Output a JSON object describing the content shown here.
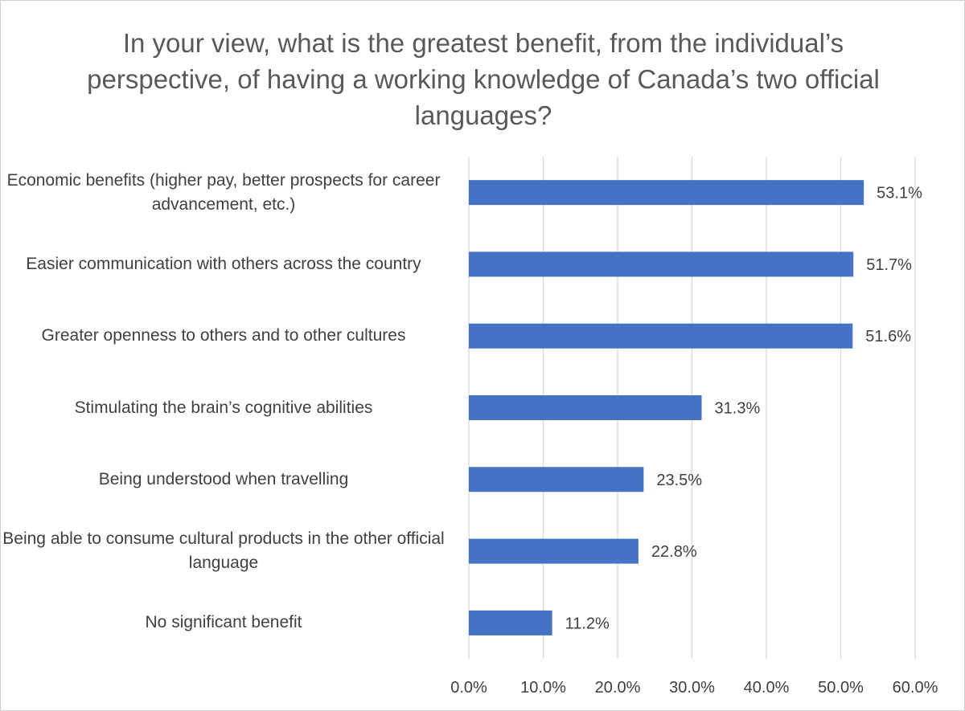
{
  "chart_data": {
    "type": "bar",
    "orientation": "horizontal",
    "title": "In your view, what is the greatest benefit, from the individual’s perspective, of having a working knowledge of Canada’s two official languages?",
    "categories": [
      "Economic benefits (higher pay, better prospects for career advancement, etc.)",
      "Easier communication with others across the country",
      "Greater openness to others and to other cultures",
      "Stimulating the brain’s cognitive abilities",
      "Being understood when travelling",
      "Being able to consume cultural products in the other official language",
      "No significant benefit"
    ],
    "values": [
      53.1,
      51.7,
      51.6,
      31.3,
      23.5,
      22.8,
      11.2
    ],
    "data_labels": [
      "53.1%",
      "51.7%",
      "51.6%",
      "31.3%",
      "23.5%",
      "22.8%",
      "11.2%"
    ],
    "xlim": [
      0,
      60
    ],
    "x_ticks": [
      0,
      10,
      20,
      30,
      40,
      50,
      60
    ],
    "x_tick_labels": [
      "0.0%",
      "10.0%",
      "20.0%",
      "30.0%",
      "40.0%",
      "50.0%",
      "60.0%"
    ],
    "gridlines": true,
    "legend": "none",
    "bar_color": "#4472c4",
    "grid_color": "#d9d9d9"
  }
}
